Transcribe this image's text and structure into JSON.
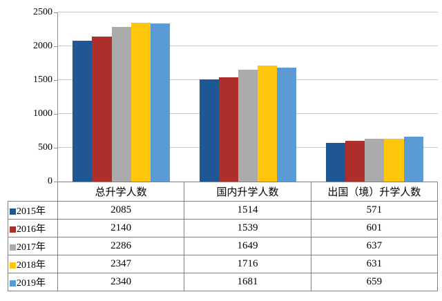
{
  "chart_data": {
    "type": "bar",
    "title": "",
    "categories": [
      "总升学人数",
      "国内升学人数",
      "出国（境）升学人数"
    ],
    "series": [
      {
        "name": "2015年",
        "color": "#1F5795",
        "values": [
          2085,
          1514,
          571
        ]
      },
      {
        "name": "2016年",
        "color": "#AC2F2B",
        "values": [
          2140,
          1539,
          601
        ]
      },
      {
        "name": "2017年",
        "color": "#ABABAB",
        "values": [
          2286,
          1649,
          637
        ]
      },
      {
        "name": "2018年",
        "color": "#FFC60B",
        "values": [
          2347,
          1716,
          631
        ]
      },
      {
        "name": "2019年",
        "color": "#5B9BD5",
        "values": [
          2340,
          1681,
          659
        ]
      }
    ],
    "y_axis": {
      "min": 0,
      "max": 2500,
      "step": 500,
      "tick_labels": [
        "0",
        "500",
        "1000",
        "1500",
        "2000",
        "2500"
      ]
    },
    "grid": true,
    "legend_position": "data-table-left-column",
    "data_table_shown": true
  },
  "colors": {
    "background": "#FFFFFF",
    "gridline": "#C9C9C9",
    "axis_line": "#8C8C8C",
    "table_border": "#7F7F7F",
    "text": "#000000"
  }
}
